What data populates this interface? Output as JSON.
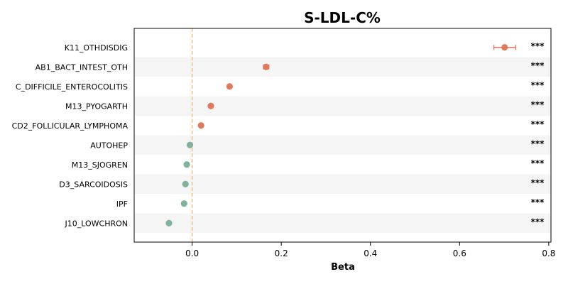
{
  "chart_data": {
    "type": "scatter",
    "title": "S-LDL-C%",
    "xlabel": "Beta",
    "ylabel": "",
    "xlim": [
      -0.13,
      0.805
    ],
    "xticks": [
      0.0,
      0.2,
      0.4,
      0.6,
      0.8
    ],
    "xtick_labels": [
      "0.0",
      "0.2",
      "0.4",
      "0.6",
      "0.8"
    ],
    "reference_line": 0.0,
    "categories": [
      "K11_OTHDISDIG",
      "AB1_BACT_INTEST_OTH",
      "C_DIFFICILE_ENTEROCOLITIS",
      "M13_PYOGARTH",
      "CD2_FOLLICULAR_LYMPHOMA",
      "AUTOHEP",
      "M13_SJOGREN",
      "D3_SARCOIDOSIS",
      "IPF",
      "J10_LOWCHRON"
    ],
    "beta": [
      0.701,
      0.166,
      0.084,
      0.042,
      0.02,
      -0.005,
      -0.012,
      -0.015,
      -0.018,
      -0.052
    ],
    "ci_low": [
      0.677,
      0.16,
      0.081,
      0.04,
      0.018,
      -0.007,
      -0.014,
      -0.017,
      -0.02,
      -0.054
    ],
    "ci_high": [
      0.726,
      0.172,
      0.087,
      0.044,
      0.022,
      -0.003,
      -0.01,
      -0.013,
      -0.016,
      -0.05
    ],
    "significance": [
      "***",
      "***",
      "***",
      "***",
      "***",
      "***",
      "***",
      "***",
      "***",
      "***"
    ],
    "grid": false,
    "colors": {
      "positive": "#e07a5f",
      "negative": "#81b29a",
      "reference_line": "#f2c27a",
      "band": "#f5f5f5"
    }
  }
}
